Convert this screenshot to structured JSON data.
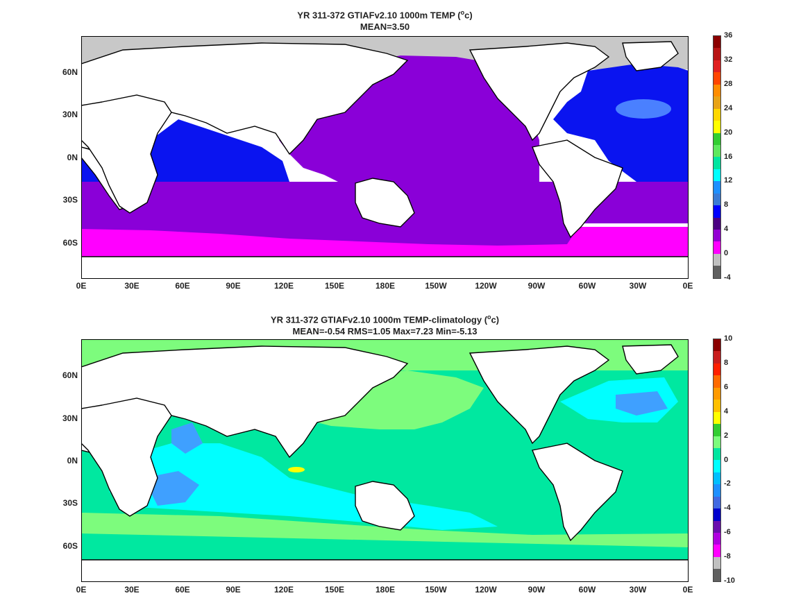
{
  "panels": [
    {
      "title_line1_prefix": "YR 311-372 GTIAFv2.10 1000m TEMP (",
      "title_unit_sup": "o",
      "title_unit_rest": "c)",
      "title_line2": "MEAN=3.50",
      "colorbar_labels": [
        "36",
        "32",
        "28",
        "24",
        "20",
        "16",
        "12",
        "8",
        "4",
        "0",
        "-4"
      ],
      "colorbar_colors": [
        "#8b0000",
        "#b81414",
        "#e02020",
        "#ff4500",
        "#ff8c00",
        "#e8a317",
        "#ffd700",
        "#ffff00",
        "#32cd32",
        "#5ee85e",
        "#00e5a0",
        "#00ffff",
        "#1e90ff",
        "#3a7bd5",
        "#0000ff",
        "#4b0082",
        "#9400d3",
        "#ff00ff",
        "#c0c0c0",
        "#606060"
      ]
    },
    {
      "title_line1_prefix": "YR 311-372 GTIAFv2.10 1000m TEMP-climatology (",
      "title_unit_sup": "o",
      "title_unit_rest": "c)",
      "title_line2": "MEAN=-0.54   RMS=1.05   Max=7.23   Min=-5.13",
      "colorbar_labels": [
        "10",
        "8",
        "6",
        "4",
        "2",
        "0",
        "-2",
        "-4",
        "-6",
        "-8",
        "-10"
      ],
      "colorbar_colors": [
        "#8b0000",
        "#c81e1e",
        "#ff2000",
        "#ff6a00",
        "#ff9a00",
        "#ffc000",
        "#ffff00",
        "#32cd32",
        "#7cfc7c",
        "#00e5a0",
        "#00ffff",
        "#00bfff",
        "#1e90ff",
        "#4169e1",
        "#0000cd",
        "#6a0dad",
        "#b000e0",
        "#ff00ff",
        "#c0c0c0",
        "#606060"
      ]
    }
  ],
  "x_ticks": [
    "0E",
    "30E",
    "60E",
    "90E",
    "120E",
    "150E",
    "180E",
    "150W",
    "120W",
    "90W",
    "60W",
    "30W",
    "0E"
  ],
  "y_ticks": [
    "60N",
    "30N",
    "0N",
    "30S",
    "60S"
  ],
  "colors": {
    "top_pacific": "#8a00d8",
    "top_atlantic": "#0a14f0",
    "top_southern": "#ff00ff",
    "top_ice": "#c8c8c8",
    "bottom_main": "#00e8a0",
    "bottom_pos": "#7dfc7d",
    "bottom_cyan": "#00ffff",
    "bottom_blue": "#3fa0ff",
    "bottom_ice": "#c8c8c8"
  }
}
